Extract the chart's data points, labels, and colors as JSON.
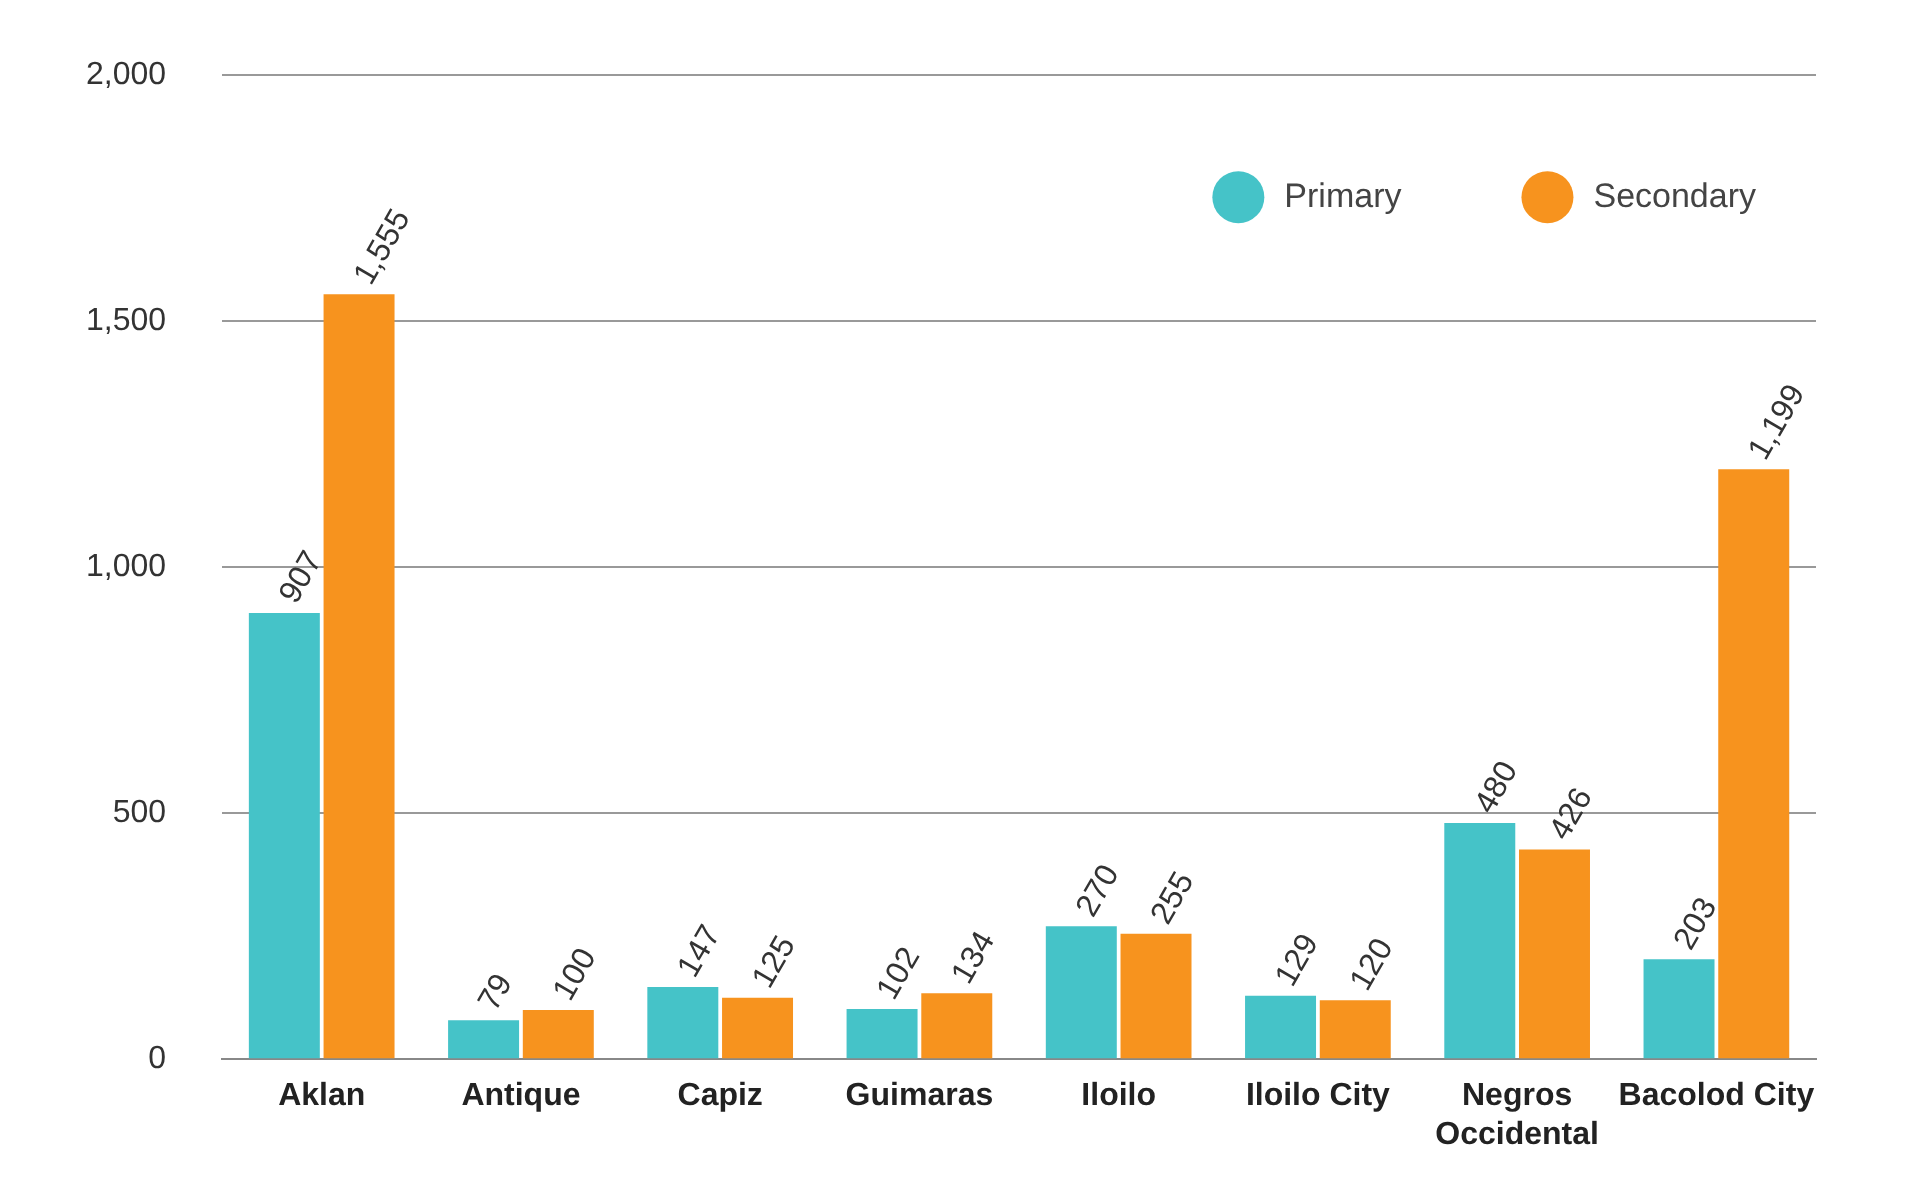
{
  "chart_data": {
    "type": "bar",
    "categories": [
      "Aklan",
      "Antique",
      "Capiz",
      "Guimaras",
      "Iloilo",
      "Iloilo City",
      "Negros Occidental",
      "Bacolod City"
    ],
    "series": [
      {
        "name": "Primary",
        "color": "#45c3c8",
        "values": [
          907,
          79,
          147,
          102,
          270,
          129,
          480,
          203
        ],
        "value_labels": [
          "907",
          "79",
          "147",
          "102",
          "270",
          "129",
          "480",
          "203"
        ]
      },
      {
        "name": "Secondary",
        "color": "#f7931e",
        "values": [
          1555,
          100,
          125,
          134,
          255,
          120,
          426,
          1199
        ],
        "value_labels": [
          "1,555",
          "100",
          "125",
          "134",
          "255",
          "120",
          "426",
          "1,199"
        ]
      }
    ],
    "ylim": [
      0,
      2000
    ],
    "yticks": [
      0,
      500,
      {
        "value": 1000,
        "label": "1,000"
      },
      {
        "value": 1500,
        "label": "1,500"
      },
      {
        "value": 2000,
        "label": "2,000"
      }
    ],
    "grid": "y",
    "legend": "top right",
    "marker": "circle"
  }
}
